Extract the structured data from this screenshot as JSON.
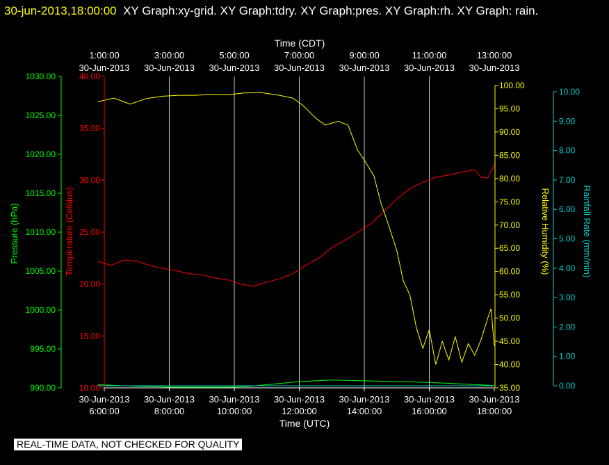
{
  "header": {
    "timestamp": "30-jun-2013,18:00:00",
    "graphs": "XY Graph:xy-grid.  XY Graph:tdry.  XY Graph:pres.  XY Graph:rh.  XY Graph: rain."
  },
  "notice": "REAL-TIME DATA, NOT CHECKED FOR QUALITY",
  "colors": {
    "pressure": "#00ff00",
    "temperature": "#ff0000",
    "humidity": "#ffff00",
    "rainfall": "#00d0d0",
    "grid": "#ffffff",
    "background": "#000000"
  },
  "chart_data": {
    "type": "line",
    "grid": true,
    "x_top": {
      "label": "Time (CDT)",
      "ticks": [
        {
          "time": "1:00:00",
          "date": "30-Jun-2013"
        },
        {
          "time": "3:00:00",
          "date": "30-Jun-2013"
        },
        {
          "time": "5:00:00",
          "date": "30-Jun-2013"
        },
        {
          "time": "7:00:00",
          "date": "30-Jun-2013"
        },
        {
          "time": "9:00:00",
          "date": "30-Jun-2013"
        },
        {
          "time": "11:00:00",
          "date": "30-Jun-2013"
        },
        {
          "time": "13:00:00",
          "date": "30-Jun-2013"
        }
      ]
    },
    "x_bottom": {
      "label": "Time (UTC)",
      "ticks": [
        {
          "date": "30-Jun-2013",
          "time": "6:00:00"
        },
        {
          "date": "30-Jun-2013",
          "time": "8:00:00"
        },
        {
          "date": "30-Jun-2013",
          "time": "10:00:00"
        },
        {
          "date": "30-Jun-2013",
          "time": "12:00:00"
        },
        {
          "date": "30-Jun-2013",
          "time": "14:00:00"
        },
        {
          "date": "30-Jun-2013",
          "time": "16:00:00"
        },
        {
          "date": "30-Jun-2013",
          "time": "18:00:00"
        }
      ]
    },
    "xlim_utc_hours": [
      6,
      18
    ],
    "axes": {
      "pressure": {
        "label": "Pressure (hPa)",
        "range": [
          990,
          1030
        ],
        "ticks": [
          "990.00",
          "995.00",
          "1000.00",
          "1005.00",
          "1010.00",
          "1015.00",
          "1020.00",
          "1025.00",
          "1030.00"
        ]
      },
      "temperature": {
        "label": "Temperature (Celsius)",
        "range": [
          10,
          40
        ],
        "ticks": [
          "10.00",
          "15.00",
          "20.00",
          "25.00",
          "30.00",
          "35.00",
          "40.00"
        ]
      },
      "humidity": {
        "label": "Relative Humidity (%)",
        "range": [
          35,
          100
        ],
        "ticks": [
          "35.00",
          "40.00",
          "45.00",
          "50.00",
          "55.00",
          "60.00",
          "65.00",
          "70.00",
          "75.00",
          "80.00",
          "85.00",
          "90.00",
          "95.00",
          "100.00"
        ]
      },
      "rainfall": {
        "label": "Rainfall Rate (mm/min)",
        "range": [
          0,
          10
        ],
        "ticks": [
          "0.00",
          "1.00",
          "2.00",
          "3.00",
          "4.00",
          "5.00",
          "6.00",
          "7.00",
          "8.00",
          "9.00",
          "10.00"
        ]
      }
    },
    "series": [
      {
        "name": "Temperature (Celsius)",
        "axis": "temperature",
        "x": [
          5.8,
          6.2,
          6.6,
          7.0,
          7.4,
          7.8,
          8.2,
          8.6,
          9.0,
          9.4,
          9.8,
          10.2,
          10.6,
          11.0,
          11.4,
          11.8,
          12.2,
          12.6,
          13.0,
          13.4,
          13.8,
          14.2,
          14.6,
          15.0,
          15.4,
          15.8,
          16.2,
          16.6,
          17.0,
          17.4,
          17.6,
          17.8,
          18.0
        ],
        "y": [
          22.2,
          21.8,
          22.3,
          22.2,
          21.8,
          21.5,
          21.3,
          21.0,
          20.9,
          20.6,
          20.4,
          20.0,
          19.8,
          20.2,
          20.5,
          21.0,
          21.8,
          22.5,
          23.5,
          24.2,
          25.0,
          25.8,
          27.0,
          28.2,
          29.2,
          29.8,
          30.3,
          30.5,
          30.8,
          31.0,
          30.3,
          30.2,
          31.5
        ]
      },
      {
        "name": "Relative Humidity (%)",
        "axis": "humidity",
        "x": [
          5.8,
          6.3,
          6.8,
          7.3,
          7.8,
          8.3,
          8.8,
          9.3,
          9.8,
          10.3,
          10.8,
          11.3,
          11.8,
          12.1,
          12.5,
          12.8,
          13.2,
          13.5,
          13.8,
          14.0,
          14.3,
          14.5,
          14.7,
          15.0,
          15.2,
          15.4,
          15.6,
          15.8,
          16.0,
          16.2,
          16.4,
          16.6,
          16.8,
          17.0,
          17.2,
          17.4,
          17.6,
          17.8,
          17.9,
          18.0
        ],
        "y": [
          96.5,
          97.3,
          96.0,
          97.2,
          97.7,
          97.9,
          97.9,
          98.1,
          98.0,
          98.4,
          98.5,
          98.0,
          97.3,
          95.8,
          93.0,
          91.5,
          92.3,
          91.5,
          86.0,
          84.0,
          80.5,
          75.0,
          71.0,
          64.5,
          58.0,
          55.0,
          48.0,
          43.5,
          47.5,
          40.0,
          45.0,
          41.0,
          46.0,
          40.5,
          44.5,
          42.0,
          45.5,
          50.0,
          52.0,
          44.0
        ]
      },
      {
        "name": "Pressure (hPa)",
        "axis": "pressure",
        "x": [
          5.8,
          7.0,
          8.0,
          9.0,
          10.0,
          10.5,
          11.0,
          11.5,
          12.0,
          12.5,
          13.0,
          14.0,
          15.0,
          16.0,
          16.5,
          17.0,
          17.5,
          18.0
        ],
        "y": [
          990.4,
          990.2,
          990.1,
          990.1,
          990.1,
          990.2,
          990.4,
          990.6,
          990.8,
          990.9,
          991.0,
          990.9,
          990.8,
          990.7,
          990.6,
          990.5,
          990.4,
          990.3
        ]
      },
      {
        "name": "Rainfall Rate (mm/min)",
        "axis": "rainfall",
        "x": [
          5.8,
          18.0
        ],
        "y": [
          0.0,
          0.0
        ]
      }
    ]
  }
}
